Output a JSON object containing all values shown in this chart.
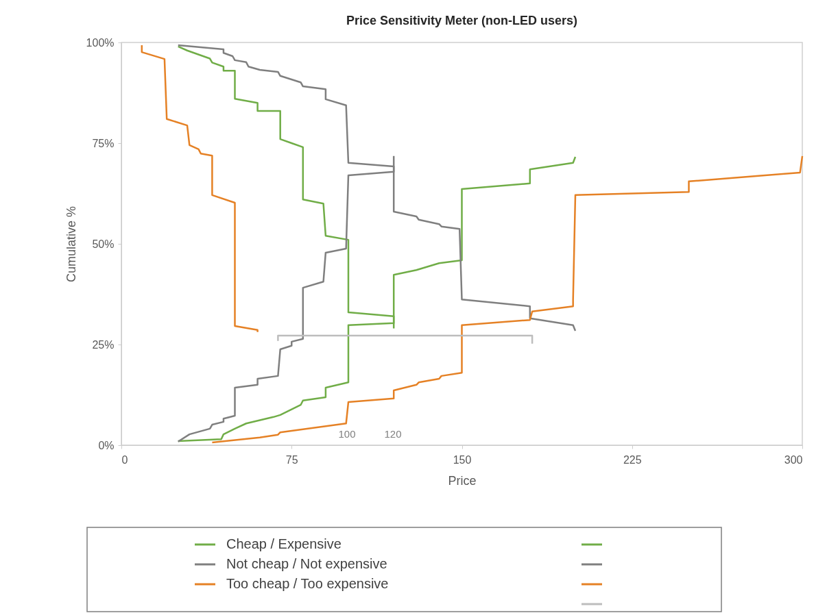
{
  "chart_data": {
    "type": "line",
    "title": "Price Sensitivity Meter (non-LED users)",
    "xlabel": "Price",
    "ylabel": "Cumulative %",
    "xlim": [
      0,
      300
    ],
    "xticks": [
      0,
      75,
      150,
      225,
      300
    ],
    "ylim": [
      0,
      100
    ],
    "yticks": [
      {
        "value": 0,
        "label": "0%"
      },
      {
        "value": 25,
        "label": "25%"
      },
      {
        "value": 50,
        "label": "50%"
      },
      {
        "value": 75,
        "label": "75%"
      },
      {
        "value": 100,
        "label": "100%"
      }
    ],
    "grid": false,
    "legend": "bottom",
    "line_style": "solid",
    "series": [
      {
        "name": "Cheap / Expensive",
        "color": "#70ad47",
        "x": [
          25,
          29,
          39,
          40,
          45,
          45,
          50,
          50,
          60,
          60,
          70,
          70,
          75,
          80,
          80,
          89,
          90,
          100,
          100,
          120,
          120
        ],
        "values": [
          99,
          98,
          96,
          95,
          94,
          93,
          93,
          86,
          85,
          83,
          83,
          76,
          75,
          74,
          61,
          60,
          52,
          51,
          33,
          32,
          29
        ]
      },
      {
        "color": "#70ad47",
        "x": [
          25,
          44,
          45,
          50,
          55,
          67,
          70,
          79,
          80,
          90,
          90,
          100,
          100,
          120,
          120,
          130,
          140,
          150,
          150,
          180,
          180,
          199,
          200
        ],
        "values": [
          1,
          1.5,
          2.7,
          4.1,
          5.4,
          7,
          7.5,
          10,
          11.1,
          11.9,
          14.3,
          15.6,
          29.8,
          30.3,
          42.3,
          43.5,
          45.2,
          45.9,
          63.6,
          65,
          68.5,
          70.1,
          71.6
        ]
      },
      {
        "name": "Not cheap / Not expensive",
        "color": "#7f7f7f",
        "x": [
          25,
          45,
          45,
          49,
          50,
          55,
          56,
          61,
          69,
          70,
          79,
          80,
          90,
          90,
          99,
          100,
          120,
          120,
          130,
          131,
          140,
          141,
          149,
          150,
          180,
          180,
          199,
          200
        ],
        "values": [
          99.3,
          98.3,
          97.4,
          96.6,
          95.6,
          95.1,
          94,
          93.2,
          92.7,
          91.7,
          90.1,
          89.1,
          88.4,
          85.9,
          84.4,
          70.1,
          69.2,
          58,
          56.8,
          56,
          54.9,
          54.3,
          53.7,
          36.2,
          34.5,
          31.5,
          29.8,
          28.4
        ]
      },
      {
        "color": "#7f7f7f",
        "x": [
          25,
          30,
          39,
          40,
          45,
          45,
          50,
          50,
          60,
          60,
          69,
          70,
          75,
          75,
          80,
          80,
          89,
          90,
          99,
          100,
          120,
          120
        ],
        "values": [
          0.9,
          2.7,
          4.1,
          5.1,
          5.8,
          6.6,
          7.3,
          14.3,
          15,
          16.5,
          17.2,
          23.8,
          24.7,
          25.7,
          26.4,
          39.1,
          40.6,
          47.8,
          48.8,
          67,
          67.9,
          71.8
        ]
      },
      {
        "name": "Too cheap / Too expensive",
        "color": "#e58125",
        "x": [
          9,
          9,
          19,
          20,
          29,
          30,
          34,
          35,
          40,
          40,
          50,
          50,
          60,
          60
        ],
        "values": [
          99.3,
          97.6,
          95.9,
          81,
          79.4,
          74.5,
          73.5,
          72.4,
          71.9,
          62.1,
          60.2,
          29.6,
          28.6,
          28.1
        ]
      },
      {
        "color": "#e58125",
        "x": [
          40,
          61,
          69,
          70,
          99,
          100,
          120,
          120,
          130,
          131,
          140,
          141,
          150,
          150,
          180,
          181,
          199,
          199,
          200,
          250,
          250,
          299,
          300
        ],
        "values": [
          0.7,
          1.9,
          2.6,
          3.2,
          5.4,
          10.7,
          11.6,
          13.6,
          15,
          15.6,
          16.5,
          17.2,
          18,
          29.8,
          31.1,
          33.2,
          34.5,
          36.1,
          62.1,
          62.9,
          65.5,
          67.7,
          71.8
        ]
      },
      {
        "color": "#bdbdbd",
        "x": [
          69,
          69,
          181,
          181
        ],
        "values": [
          25.9,
          27.2,
          27.2,
          25.2
        ]
      }
    ],
    "annotations": [
      "100",
      "120"
    ]
  }
}
